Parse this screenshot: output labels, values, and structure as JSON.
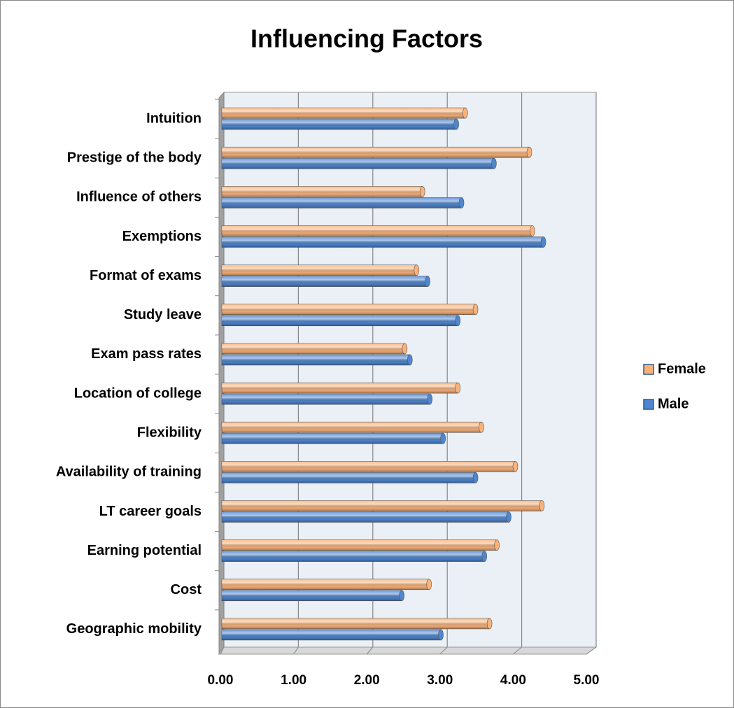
{
  "chart_data": {
    "type": "bar",
    "orientation": "horizontal",
    "title": "Influencing Factors",
    "categories": [
      "Intuition",
      "Prestige of the body",
      "Influence of others",
      "Exemptions",
      "Format of exams",
      "Study leave",
      "Exam pass rates",
      "Location of college",
      "Flexibility",
      "Availability of training",
      "LT career goals",
      "Earning potential",
      "Cost",
      "Geographic mobility"
    ],
    "series": [
      {
        "name": "Female",
        "color": "#f9b27a",
        "values": [
          3.3,
          4.17,
          2.72,
          4.21,
          2.64,
          3.44,
          2.48,
          3.2,
          3.52,
          3.98,
          4.34,
          3.73,
          2.81,
          3.63
        ]
      },
      {
        "name": "Male",
        "color": "#4f86d0",
        "values": [
          3.18,
          3.69,
          3.25,
          4.36,
          2.79,
          3.2,
          2.55,
          2.82,
          3.0,
          3.44,
          3.89,
          3.56,
          2.44,
          2.97
        ]
      }
    ],
    "xlim": [
      0,
      5
    ],
    "xticks": [
      {
        "value": 0,
        "label": "0.00"
      },
      {
        "value": 1,
        "label": "1.00"
      },
      {
        "value": 2,
        "label": "2.00"
      },
      {
        "value": 3,
        "label": "3.00"
      },
      {
        "value": 4,
        "label": "4.00"
      },
      {
        "value": 5,
        "label": "5.00"
      }
    ],
    "grid": true,
    "legend": "right"
  }
}
